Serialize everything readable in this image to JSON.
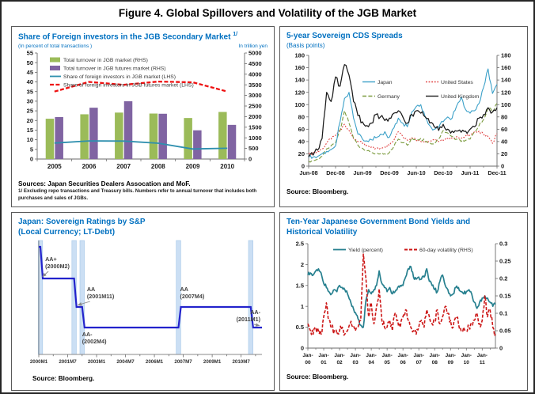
{
  "figure_title": "Figure 4. Global Spillovers and Volatility of the JGB Market",
  "colors": {
    "panel_title_blue": "#0070C0",
    "bar_green": "#9BBB59",
    "bar_purple": "#8064A2",
    "line_teal": "#2E8FAE",
    "line_red_dashed": "#EE1111",
    "cds_japan": "#3BA0C8",
    "cds_us": "#E04040",
    "cds_germany": "#7A9A3D",
    "cds_uk": "#1A1A1A",
    "ratings_line_blue": "#2323CC",
    "ratings_band_blue": "#CBDFF4",
    "yield_teal": "#27808F",
    "volatility_red": "#CC1616"
  },
  "panels": {
    "jgb": {
      "title": "Share of Foreign investors in the JGB Secondary Market",
      "title_sup": "1/",
      "left_caption": "(In percent of total transactions )",
      "right_caption": "In trillion yen",
      "sources": "Sources: Japan Securities Dealers Assocation and MoF.",
      "footnote": "1/ Excluding repo transactions and Treasury bills. Numbers refer to annual turnover that includes both purchases and sales of JGBs."
    },
    "cds": {
      "title": "5-year Sovereign CDS Spreads",
      "subtitle": "(Basis points)",
      "source": "Source: Bloomberg."
    },
    "ratings": {
      "title_line1": "Japan: Sovereign Ratings by S&P",
      "title_line2": "(Local Currency; LT-Debt)",
      "source": "Source: Bloomberg."
    },
    "yields": {
      "title_line1": "Ten-Year Japanese Government Bond Yields and",
      "title_line2": "Historical Volatility",
      "source": "Source: Bloomberg."
    }
  },
  "chart_data": [
    {
      "id": "jgb_turnover",
      "type": "bar",
      "categories": [
        "2005",
        "2006",
        "2007",
        "2008",
        "2009",
        "2010"
      ],
      "left_axis": {
        "min": 0,
        "max": 55,
        "step": 5,
        "label": "(In percent of total transactions )"
      },
      "right_axis": {
        "min": 0,
        "max": 5000,
        "step": 500,
        "label": "In trillion yen"
      },
      "series": [
        {
          "name": "Total turnover in JGB market (RHS)",
          "kind": "bar",
          "axis": "right",
          "color": "#9BBB59",
          "values": [
            1900,
            2110,
            2190,
            2145,
            1935,
            2220
          ]
        },
        {
          "name": "Total turnover in JGB futures market (RHS)",
          "kind": "bar",
          "axis": "right",
          "color": "#8064A2",
          "values": [
            1980,
            2420,
            2725,
            2135,
            1355,
            1610
          ]
        },
        {
          "name": "Share of foreign investors in JGB market (LHS)",
          "kind": "line",
          "axis": "left",
          "color": "#2E8FAE",
          "dash": "solid",
          "values": [
            8.3,
            9.4,
            9.3,
            8.2,
            5.2,
            5.6
          ]
        },
        {
          "name": "Share of foreign investors in JGB futures market (LHS)",
          "kind": "line",
          "axis": "left",
          "color": "#EE1111",
          "dash": "dashed",
          "values": [
            35,
            40,
            38.5,
            40.2,
            39.8,
            35
          ]
        }
      ]
    },
    {
      "id": "cds_spreads",
      "type": "line",
      "ylim": [
        0,
        180
      ],
      "ystep": 20,
      "x_tick_labels": [
        "Jun-08",
        "Dec-08",
        "Jun-09",
        "Dec-09",
        "Jun-10",
        "Dec-10",
        "Jun-11",
        "Dec-11"
      ],
      "x_tick_every": 6,
      "series": [
        {
          "name": "Japan",
          "color": "#3BA0C8",
          "dash": "solid",
          "noise": 4,
          "values": [
            14,
            15,
            16,
            20,
            24,
            27,
            33,
            72,
            110,
            120,
            78,
            52,
            44,
            41,
            43,
            46,
            52,
            56,
            47,
            62,
            78,
            70,
            64,
            88,
            97,
            100,
            80,
            66,
            60,
            63,
            72,
            80,
            78,
            98,
            112,
            92,
            86,
            90,
            102,
            128,
            158,
            118,
            133
          ]
        },
        {
          "name": "United States",
          "color": "#E04040",
          "dash": "dotted",
          "noise": 2.5,
          "values": [
            20,
            22,
            24,
            28,
            38,
            44,
            50,
            58,
            68,
            58,
            45,
            40,
            37,
            34,
            31,
            29,
            29,
            31,
            34,
            42,
            56,
            48,
            42,
            46,
            42,
            40,
            38,
            41,
            43,
            40,
            42,
            45,
            45,
            48,
            45,
            49,
            51,
            56,
            57,
            52,
            48,
            37,
            53
          ]
        },
        {
          "name": "Germany",
          "color": "#7A9A3D",
          "dash": "dashed",
          "noise": 2.5,
          "values": [
            8,
            9,
            11,
            16,
            28,
            33,
            38,
            58,
            90,
            70,
            45,
            34,
            29,
            25,
            22,
            21,
            20,
            20,
            22,
            32,
            44,
            38,
            34,
            46,
            42,
            45,
            40,
            38,
            36,
            44,
            58,
            54,
            48,
            44,
            40,
            42,
            44,
            56,
            66,
            76,
            95,
            88,
            102
          ]
        },
        {
          "name": "United Kingdom",
          "color": "#1A1A1A",
          "dash": "solid",
          "noise": 5,
          "values": [
            15,
            18,
            26,
            45,
            120,
            105,
            145,
            130,
            165,
            148,
            105,
            82,
            72,
            66,
            70,
            84,
            80,
            74,
            78,
            86,
            90,
            80,
            70,
            84,
            90,
            86,
            80,
            70,
            64,
            58,
            68,
            60,
            57,
            57,
            55,
            57,
            60,
            64,
            78,
            84,
            95,
            88,
            95
          ]
        }
      ]
    },
    {
      "id": "sovereign_ratings",
      "type": "step",
      "x_axis": {
        "unit": "months_from_2000M1",
        "range": [
          0,
          139
        ],
        "tick_months": [
          0,
          18,
          36,
          54,
          72,
          90,
          108,
          126
        ],
        "tick_labels": [
          "2000M1",
          "2001M7",
          "2003M1",
          "2004M7",
          "2006M1",
          "2007M7",
          "2009M1",
          "2010M7"
        ]
      },
      "levels_order": [
        "AA-",
        "AA",
        "AA+",
        "AAA"
      ],
      "rating_history": [
        {
          "date": "2000M1",
          "rating": "AAA",
          "month": 0
        },
        {
          "date": "2000M2",
          "rating": "AA+",
          "month": 1
        },
        {
          "date": "2001M11",
          "rating": "AA",
          "month": 22
        },
        {
          "date": "2002M4",
          "rating": "AA-",
          "month": 27
        },
        {
          "date": "2007M4",
          "rating": "AA",
          "month": 87
        },
        {
          "date": "2011M1",
          "rating": "AA-",
          "month": 132
        }
      ],
      "highlight_band_months": [
        1,
        22,
        27,
        87,
        132
      ],
      "annotations": [
        {
          "line1": "AA+",
          "line2": "(2000M2)",
          "month": 4,
          "y": 30,
          "anchor": "start",
          "arrow": true,
          "arrow_to_month": 2.4,
          "arrow_to_level": "AA+"
        },
        {
          "line1": "AA",
          "line2": "(2001M11)",
          "month": 30,
          "y": 68,
          "anchor": "start",
          "arrow": true,
          "arrow_to_month": 24.5,
          "arrow_to_level": "AA"
        },
        {
          "line1": "AA-",
          "line2": "(2002M4)",
          "month": 27,
          "y": 125,
          "anchor": "start",
          "arrow": false
        },
        {
          "line1": "AA",
          "line2": "(2007M4)",
          "month": 88,
          "y": 68,
          "anchor": "start",
          "arrow": false
        },
        {
          "line1": "AA-",
          "line2": "(2011M1)",
          "month": 138,
          "y": 97,
          "anchor": "end",
          "arrow": true,
          "arrow_to_month": 137.3,
          "arrow_to_level": "AA-"
        }
      ]
    },
    {
      "id": "jgb_yields_volatility",
      "type": "line",
      "left_axis": {
        "min": 0,
        "max": 2.5,
        "step": 0.5
      },
      "right_axis": {
        "min": 0,
        "max": 0.3,
        "step": 0.05
      },
      "x_tick_prefix": "Jan-",
      "x_tick_years": [
        "00",
        "01",
        "02",
        "03",
        "04",
        "05",
        "06",
        "07",
        "08",
        "09",
        "10",
        "11"
      ],
      "x_tick_every": 6,
      "points_per_year": 6,
      "series": [
        {
          "name": "Yield (percent)",
          "axis": "left",
          "color": "#27808F",
          "dash": "solid",
          "noise": 0.05,
          "values": [
            1.75,
            1.8,
            1.75,
            1.85,
            1.9,
            1.8,
            1.55,
            1.45,
            1.35,
            1.3,
            1.4,
            1.35,
            1.5,
            1.45,
            1.4,
            1.3,
            1.15,
            1.0,
            0.85,
            0.7,
            0.55,
            0.5,
            1.15,
            1.4,
            1.3,
            1.4,
            1.5,
            1.85,
            1.55,
            1.45,
            1.35,
            1.45,
            1.3,
            1.35,
            1.45,
            1.5,
            1.5,
            1.7,
            1.9,
            1.95,
            1.7,
            1.65,
            1.7,
            1.65,
            1.7,
            1.9,
            1.6,
            1.5,
            1.4,
            1.35,
            1.6,
            1.75,
            1.5,
            1.4,
            1.25,
            1.3,
            1.45,
            1.45,
            1.35,
            1.3,
            1.35,
            1.4,
            1.3,
            1.1,
            0.95,
            1.1,
            1.2,
            1.25,
            1.2,
            1.1,
            1.0,
            1.05
          ]
        },
        {
          "name": "60-day volatility (RHS)",
          "axis": "right",
          "color": "#CC1616",
          "dash": "dashed",
          "noise": 0.012,
          "values": [
            0.07,
            0.05,
            0.04,
            0.06,
            0.05,
            0.04,
            0.09,
            0.13,
            0.08,
            0.06,
            0.05,
            0.04,
            0.05,
            0.06,
            0.04,
            0.05,
            0.07,
            0.06,
            0.05,
            0.06,
            0.08,
            0.27,
            0.2,
            0.09,
            0.13,
            0.07,
            0.12,
            0.17,
            0.08,
            0.06,
            0.06,
            0.08,
            0.05,
            0.1,
            0.08,
            0.06,
            0.09,
            0.11,
            0.08,
            0.06,
            0.05,
            0.04,
            0.06,
            0.08,
            0.06,
            0.11,
            0.09,
            0.07,
            0.08,
            0.11,
            0.07,
            0.09,
            0.12,
            0.1,
            0.08,
            0.06,
            0.09,
            0.07,
            0.05,
            0.06,
            0.05,
            0.06,
            0.07,
            0.08,
            0.1,
            0.07,
            0.08,
            0.15,
            0.09,
            0.11,
            0.06,
            0.04
          ]
        }
      ]
    }
  ]
}
